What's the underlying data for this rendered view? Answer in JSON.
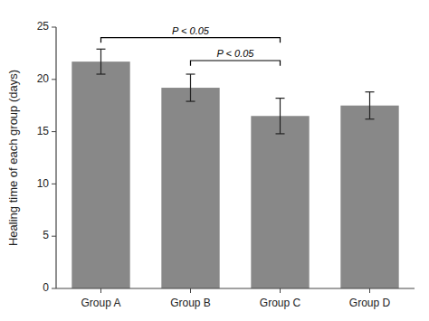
{
  "chart_data": {
    "type": "bar",
    "categories": [
      "Group A",
      "Group B",
      "Group C",
      "Group D"
    ],
    "values": [
      21.7,
      19.2,
      16.5,
      17.5
    ],
    "errors": [
      1.2,
      1.3,
      1.7,
      1.3
    ],
    "color": "#888888",
    "ylabel": "Healing time of each group (days)",
    "ylim": [
      0,
      25
    ],
    "yticks": [
      0,
      5,
      10,
      15,
      20,
      25
    ],
    "annotations": [
      {
        "text": "P < 0.05",
        "from": "Group A",
        "to": "Group C",
        "y": 24.0,
        "drop": 0.5
      },
      {
        "text": "P < 0.05",
        "from": "Group B",
        "to": "Group C",
        "y": 21.8,
        "drop": 0.5
      }
    ]
  }
}
